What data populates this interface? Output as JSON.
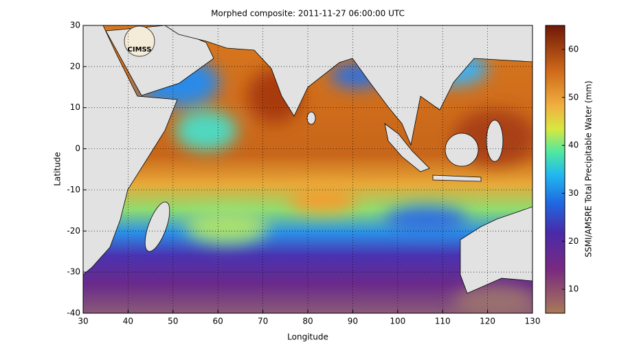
{
  "chart_data": {
    "type": "map",
    "title": "Morphed composite: 2011-11-27 06:00:00 UTC",
    "x_label": "Longitude",
    "y_label": "Latitude",
    "xlim": [
      30,
      130
    ],
    "ylim": [
      -40,
      30
    ],
    "xticks": [
      30,
      40,
      50,
      60,
      70,
      80,
      90,
      100,
      110,
      120,
      130
    ],
    "yticks": [
      -40,
      -30,
      -20,
      -10,
      0,
      10,
      20,
      30
    ],
    "grid": true,
    "logo": "CIMSS",
    "colorbar": {
      "label": "SSMI/AMSRE Total Precipitable Water (mm)",
      "clim": [
        5,
        65
      ],
      "ticks": [
        10,
        20,
        30,
        40,
        50,
        60
      ]
    }
  }
}
